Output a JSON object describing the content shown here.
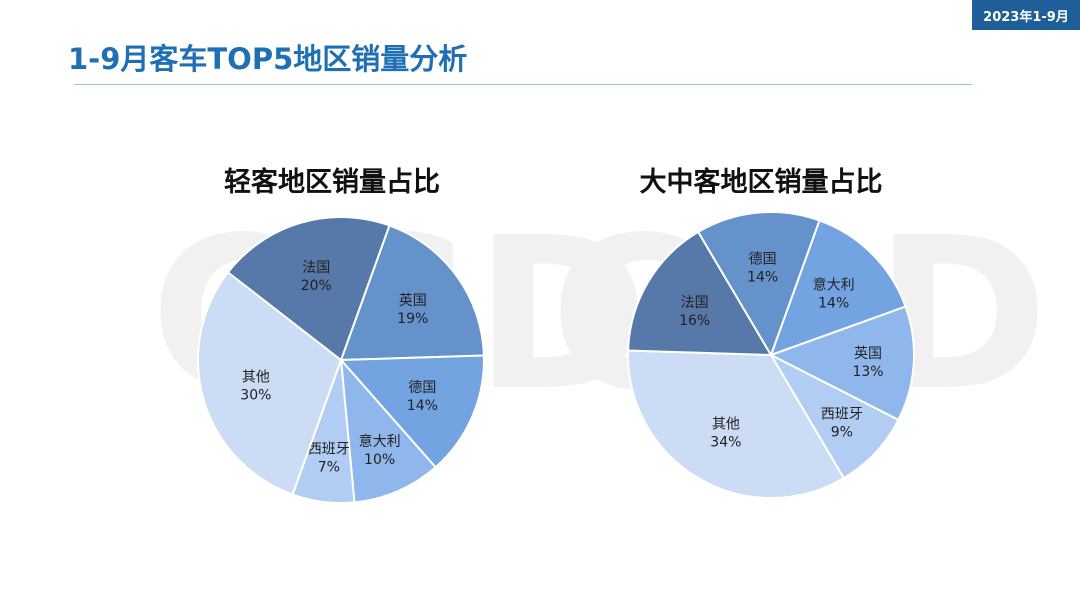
{
  "header": {
    "badge": "2023年1-9月",
    "title": "1-9月客车TOP5地区销量分析"
  },
  "watermark": "CCD",
  "chart_data": [
    {
      "type": "pie",
      "title": "轻客地区销量占比",
      "slices": [
        {
          "label": "英国",
          "value": 19,
          "value_text": "19%",
          "color": "#6592cb"
        },
        {
          "label": "德国",
          "value": 14,
          "value_text": "14%",
          "color": "#73a4e1"
        },
        {
          "label": "意大利",
          "value": 10,
          "value_text": "10%",
          "color": "#90b7ec"
        },
        {
          "label": "西班牙",
          "value": 7,
          "value_text": "7%",
          "color": "#b1cdf3"
        },
        {
          "label": "其他",
          "value": 30,
          "value_text": "30%",
          "color": "#ccdcf4"
        },
        {
          "label": "法国",
          "value": 20,
          "value_text": "20%",
          "color": "#5679a9"
        }
      ]
    },
    {
      "type": "pie",
      "title": "大中客地区销量占比",
      "slices": [
        {
          "label": "意大利",
          "value": 14,
          "value_text": "14%",
          "color": "#73a4e1"
        },
        {
          "label": "英国",
          "value": 13,
          "value_text": "13%",
          "color": "#90b7ec"
        },
        {
          "label": "西班牙",
          "value": 9,
          "value_text": "9%",
          "color": "#b1cdf3"
        },
        {
          "label": "其他",
          "value": 34,
          "value_text": "34%",
          "color": "#ccdcf4"
        },
        {
          "label": "法国",
          "value": 16,
          "value_text": "16%",
          "color": "#5679a9"
        },
        {
          "label": "德国",
          "value": 14,
          "value_text": "14%",
          "color": "#6592cb"
        }
      ]
    }
  ]
}
